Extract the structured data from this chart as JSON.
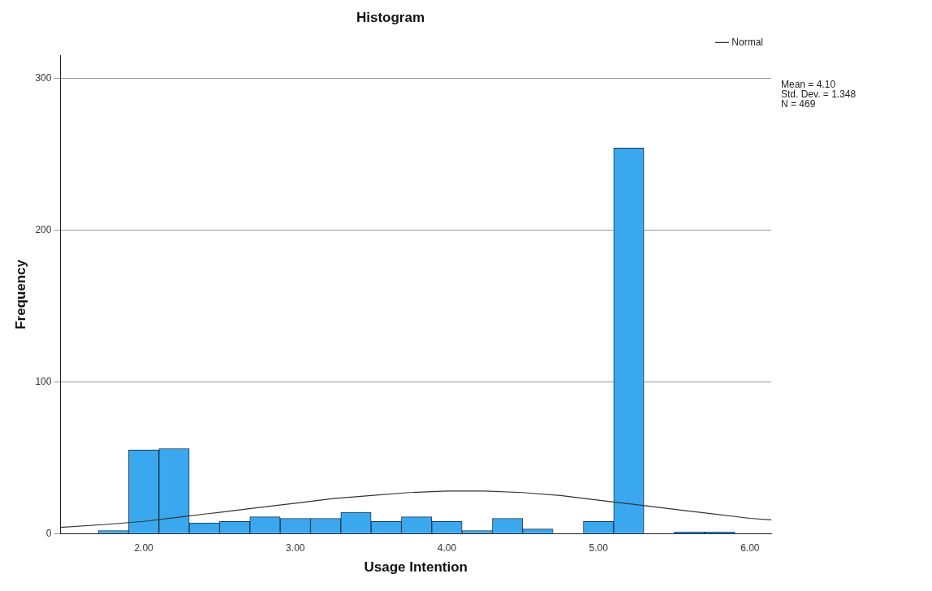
{
  "chart_data": {
    "type": "histogram",
    "title": "Histogram",
    "xlabel": "Usage Intention",
    "ylabel": "Frequency",
    "bins": [
      1.7,
      1.9,
      2.1,
      2.3,
      2.5,
      2.7,
      2.9,
      3.1,
      3.3,
      3.5,
      3.7,
      3.9,
      4.1,
      4.3,
      4.5,
      4.7,
      4.9,
      5.1,
      5.3,
      5.5,
      5.7,
      5.9
    ],
    "values": [
      2,
      55,
      56,
      7,
      8,
      11,
      10,
      10,
      14,
      8,
      11,
      8,
      2,
      10,
      3,
      0,
      8,
      254,
      0,
      1,
      1
    ],
    "color": "#3aa8ee",
    "series": [
      {
        "name": "Normal",
        "type": "line",
        "color": "#333333",
        "x": [
          1.45,
          1.75,
          2.0,
          2.25,
          2.5,
          2.75,
          3.0,
          3.25,
          3.5,
          3.75,
          4.0,
          4.1,
          4.25,
          4.5,
          4.75,
          5.0,
          5.25,
          5.5,
          5.75,
          6.0,
          6.14
        ],
        "values": [
          4,
          6,
          8,
          11,
          14,
          17,
          20,
          23,
          25,
          27,
          28,
          28,
          28,
          27,
          25,
          22,
          19,
          16,
          13,
          10,
          9
        ]
      }
    ],
    "xlim": [
      1.45,
      6.14
    ],
    "xticks": [
      {
        "value": 2,
        "label": "2.00"
      },
      {
        "value": 3,
        "label": "3.00"
      },
      {
        "value": 4,
        "label": "4.00"
      },
      {
        "value": 5,
        "label": "5.00"
      },
      {
        "value": 6,
        "label": "6.00"
      }
    ],
    "ylim": [
      0,
      315
    ],
    "yticks": [
      0,
      100,
      200,
      300
    ],
    "grid": "y",
    "legend": "top right",
    "marker": "none",
    "annotations": [
      "Mean = 4.10",
      "Std. Dev. = 1.348",
      "N = 469"
    ]
  }
}
